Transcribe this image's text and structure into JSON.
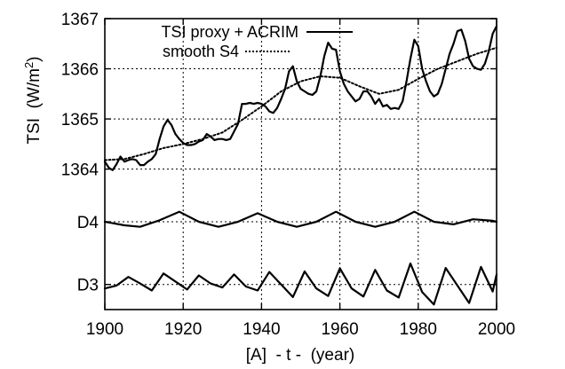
{
  "chart_data": {
    "type": "line",
    "title": "",
    "xlabel": "[A]  - t -  (year)",
    "ylabel": "TSI  (W/m²)",
    "ylabel_parts": {
      "base": "TSI  (W/m",
      "sup": "2",
      "close": ")"
    },
    "xlim": [
      1900,
      2000
    ],
    "x_ticks": [
      1900,
      1920,
      1940,
      1960,
      1980,
      2000
    ],
    "y_ticks": [
      {
        "label": "1367",
        "value": 1367
      },
      {
        "label": "1366",
        "value": 1366
      },
      {
        "label": "1365",
        "value": 1365
      },
      {
        "label": "1364",
        "value": 1364
      },
      {
        "label": "D4",
        "value": 1362.95
      },
      {
        "label": "D3",
        "value": 1361.7
      }
    ],
    "ylim": [
      1361.2,
      1367.0
    ],
    "grid": true,
    "legend_position": "top-left",
    "series": [
      {
        "name": "TSI proxy + ACRIM",
        "style": "solid",
        "x": [
          1900,
          1901,
          1902,
          1903,
          1904,
          1905,
          1906,
          1907,
          1908,
          1909,
          1910,
          1911,
          1912,
          1913,
          1914,
          1915,
          1916,
          1917,
          1918,
          1919,
          1920,
          1921,
          1922,
          1923,
          1924,
          1925,
          1926,
          1927,
          1928,
          1929,
          1930,
          1931,
          1932,
          1933,
          1934,
          1935,
          1936,
          1937,
          1938,
          1939,
          1940,
          1941,
          1942,
          1943,
          1944,
          1945,
          1946,
          1947,
          1948,
          1949,
          1950,
          1951,
          1952,
          1953,
          1954,
          1955,
          1956,
          1957,
          1958,
          1959,
          1960,
          1961,
          1962,
          1963,
          1964,
          1965,
          1966,
          1967,
          1968,
          1969,
          1970,
          1971,
          1972,
          1973,
          1974,
          1975,
          1976,
          1977,
          1978,
          1979,
          1980,
          1981,
          1982,
          1983,
          1984,
          1985,
          1986,
          1987,
          1988,
          1989,
          1990,
          1991,
          1992,
          1993,
          1994,
          1995,
          1996,
          1997,
          1998,
          1999,
          2000
        ],
        "values": [
          1364.15,
          1364.03,
          1363.98,
          1364.1,
          1364.25,
          1364.15,
          1364.18,
          1364.2,
          1364.18,
          1364.08,
          1364.08,
          1364.15,
          1364.2,
          1364.3,
          1364.6,
          1364.85,
          1364.98,
          1364.88,
          1364.7,
          1364.6,
          1364.52,
          1364.48,
          1364.48,
          1364.5,
          1364.55,
          1364.58,
          1364.7,
          1364.65,
          1364.58,
          1364.6,
          1364.6,
          1364.58,
          1364.6,
          1364.75,
          1364.9,
          1365.3,
          1365.3,
          1365.32,
          1365.3,
          1365.32,
          1365.3,
          1365.25,
          1365.15,
          1365.12,
          1365.22,
          1365.4,
          1365.6,
          1365.95,
          1366.05,
          1365.75,
          1365.6,
          1365.55,
          1365.5,
          1365.48,
          1365.55,
          1365.85,
          1366.25,
          1366.52,
          1366.4,
          1366.38,
          1365.95,
          1365.7,
          1365.55,
          1365.45,
          1365.35,
          1365.4,
          1365.55,
          1365.55,
          1365.45,
          1365.3,
          1365.4,
          1365.25,
          1365.28,
          1365.2,
          1365.22,
          1365.2,
          1365.35,
          1365.75,
          1366.2,
          1366.58,
          1366.45,
          1366.0,
          1365.75,
          1365.55,
          1365.45,
          1365.5,
          1365.7,
          1366.0,
          1366.3,
          1366.5,
          1366.75,
          1366.78,
          1366.55,
          1366.2,
          1366.05,
          1366.0,
          1365.98,
          1366.1,
          1366.35,
          1366.7,
          1366.85
        ]
      },
      {
        "name": "smooth S4",
        "style": "dotted",
        "x": [
          1900,
          1905,
          1910,
          1915,
          1920,
          1925,
          1930,
          1935,
          1940,
          1945,
          1950,
          1955,
          1960,
          1965,
          1970,
          1975,
          1980,
          1985,
          1990,
          1995,
          2000
        ],
        "values": [
          1364.18,
          1364.2,
          1364.3,
          1364.42,
          1364.5,
          1364.6,
          1364.73,
          1364.98,
          1365.25,
          1365.55,
          1365.75,
          1365.85,
          1365.82,
          1365.65,
          1365.5,
          1365.58,
          1365.8,
          1366.0,
          1366.15,
          1366.3,
          1366.42
        ]
      },
      {
        "name": "D4",
        "style": "solid",
        "baseline": 1362.95,
        "x": [
          1900,
          1905,
          1909,
          1914,
          1919,
          1924,
          1929,
          1934,
          1939,
          1944,
          1949,
          1954,
          1959,
          1964,
          1969,
          1974,
          1979,
          1984,
          1989,
          1994,
          1999,
          2000
        ],
        "values": [
          1362.95,
          1362.88,
          1362.85,
          1362.98,
          1363.15,
          1362.95,
          1362.85,
          1362.95,
          1363.12,
          1362.95,
          1362.85,
          1362.95,
          1363.15,
          1362.95,
          1362.85,
          1362.95,
          1363.15,
          1362.95,
          1362.9,
          1363.0,
          1362.97,
          1362.95
        ]
      },
      {
        "name": "D3",
        "style": "solid",
        "baseline": 1361.7,
        "x": [
          1900,
          1903,
          1906,
          1909,
          1912,
          1915,
          1918,
          1921,
          1924,
          1927,
          1930,
          1933,
          1936,
          1939,
          1942,
          1945,
          1948,
          1951,
          1954,
          1957,
          1960,
          1963,
          1966,
          1969,
          1972,
          1975,
          1978,
          1981,
          1984,
          1987,
          1990,
          1993,
          1996,
          1999,
          2000
        ],
        "values": [
          1361.62,
          1361.68,
          1361.85,
          1361.72,
          1361.58,
          1361.92,
          1361.76,
          1361.6,
          1361.88,
          1361.72,
          1361.64,
          1361.9,
          1361.66,
          1361.58,
          1361.95,
          1361.7,
          1361.45,
          1361.96,
          1361.62,
          1361.47,
          1362.02,
          1361.62,
          1361.46,
          1361.99,
          1361.58,
          1361.44,
          1362.12,
          1361.55,
          1361.3,
          1362.03,
          1361.68,
          1361.33,
          1362.05,
          1361.56,
          1361.9
        ]
      }
    ]
  }
}
